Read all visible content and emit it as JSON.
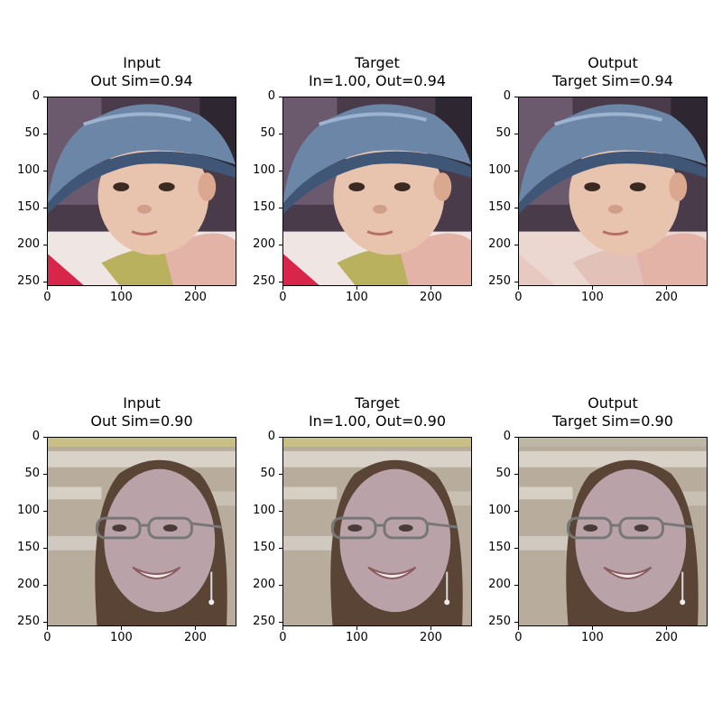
{
  "figure": {
    "rows": [
      {
        "panels": [
          {
            "title_line1": "Input",
            "title_line2": "Out Sim=0.94",
            "image": "baby-bucket-hat"
          },
          {
            "title_line1": "Target",
            "title_line2": "In=1.00, Out=0.94",
            "image": "baby-bucket-hat"
          },
          {
            "title_line1": "Output",
            "title_line2": "Target Sim=0.94",
            "image": "baby-bucket-hat-reconstructed"
          }
        ]
      },
      {
        "panels": [
          {
            "title_line1": "Input",
            "title_line2": "Out Sim=0.90",
            "image": "smiling-woman-glasses"
          },
          {
            "title_line1": "Target",
            "title_line2": "In=1.00, Out=0.90",
            "image": "smiling-woman-glasses"
          },
          {
            "title_line1": "Output",
            "title_line2": "Target Sim=0.90",
            "image": "smiling-woman-glasses-reconstructed"
          }
        ]
      }
    ],
    "axis": {
      "yticks": [
        "0",
        "50",
        "100",
        "150",
        "200",
        "250"
      ],
      "xticks": [
        "0",
        "100",
        "200"
      ]
    }
  },
  "colors": {
    "hat": "#6c86a8",
    "hat_shadow": "#3f5677",
    "skin_baby": "#e8c3ad",
    "skin_woman": "#b9a2a8",
    "hair": "#5a4436",
    "bg_baby": "#4a3b4a",
    "bg_woman": "#b8ad9c"
  }
}
